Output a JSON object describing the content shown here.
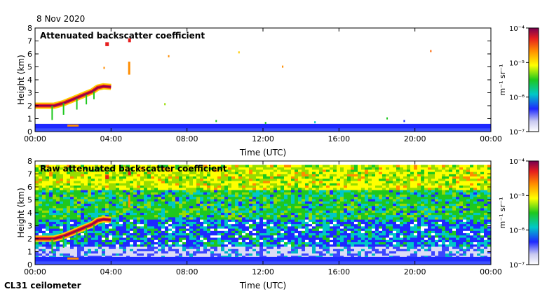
{
  "date_label": "8 Nov 2020",
  "instrument_label": "CL31 ceilometer",
  "colorbar_unit": "m⁻¹ sr⁻¹",
  "chart_data": [
    {
      "type": "heatmap",
      "title": "Attenuated backscatter coefficient",
      "xlabel": "Time (UTC)",
      "ylabel": "Height (km)",
      "xlim": [
        0,
        24
      ],
      "ylim": [
        0,
        8
      ],
      "x_ticks": [
        0,
        4,
        8,
        12,
        16,
        20,
        24
      ],
      "x_tick_labels": [
        "00:00",
        "04:00",
        "08:00",
        "12:00",
        "16:00",
        "20:00",
        "00:00"
      ],
      "y_ticks": [
        0,
        1,
        2,
        3,
        4,
        5,
        6,
        7,
        8
      ],
      "y_tick_labels": [
        "0",
        "1",
        "2",
        "3",
        "4",
        "5",
        "6",
        "7",
        "8"
      ],
      "colorbar": {
        "scale": "log",
        "range": [
          1e-07,
          0.0001
        ],
        "tick_labels": [
          "10⁻⁷",
          "10⁻⁶",
          "10⁻⁵",
          "10⁻⁴"
        ],
        "colors": [
          "#e6e6f5",
          "#1e28ff",
          "#00c8c8",
          "#1ec81e",
          "#ffff00",
          "#ff8c00",
          "#e61e1e",
          "#8c0050"
        ]
      },
      "cloud_layer": {
        "time": [
          0,
          1,
          1.5,
          2,
          2.5,
          3,
          3.3,
          3.6,
          4.0
        ],
        "height": [
          2.0,
          2.0,
          2.2,
          2.5,
          2.8,
          3.1,
          3.4,
          3.5,
          3.45
        ]
      },
      "noise_background": false
    },
    {
      "type": "heatmap",
      "title": "Raw attenuated backscatter coefficient",
      "xlabel": "Time (UTC)",
      "ylabel": "Height (km)",
      "xlim": [
        0,
        24
      ],
      "ylim": [
        0,
        8
      ],
      "x_ticks": [
        0,
        4,
        8,
        12,
        16,
        20,
        24
      ],
      "x_tick_labels": [
        "00:00",
        "04:00",
        "08:00",
        "12:00",
        "16:00",
        "20:00",
        "00:00"
      ],
      "y_ticks": [
        0,
        1,
        2,
        3,
        4,
        5,
        6,
        7,
        8
      ],
      "y_tick_labels": [
        "0",
        "1",
        "2",
        "3",
        "4",
        "5",
        "6",
        "7",
        "8"
      ],
      "colorbar": {
        "scale": "log",
        "range": [
          1e-07,
          0.0001
        ],
        "tick_labels": [
          "10⁻⁷",
          "10⁻⁶",
          "10⁻⁵",
          "10⁻⁴"
        ],
        "colors": [
          "#e6e6f5",
          "#1e28ff",
          "#00c8c8",
          "#1ec81e",
          "#ffff00",
          "#ff8c00",
          "#e61e1e",
          "#8c0050"
        ]
      },
      "cloud_layer": {
        "time": [
          0,
          1,
          1.5,
          2,
          2.5,
          3,
          3.3,
          3.6,
          4.0
        ],
        "height": [
          2.0,
          2.0,
          2.2,
          2.5,
          2.8,
          3.1,
          3.4,
          3.5,
          3.45
        ]
      },
      "noise_background": true
    }
  ]
}
